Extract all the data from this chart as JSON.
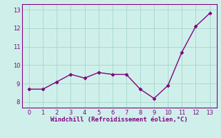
{
  "x": [
    0,
    1,
    2,
    3,
    4,
    5,
    6,
    7,
    8,
    9,
    10,
    11,
    12,
    13
  ],
  "y": [
    8.7,
    8.7,
    9.1,
    9.5,
    9.3,
    9.6,
    9.5,
    9.5,
    8.7,
    8.2,
    8.9,
    10.7,
    12.1,
    12.8
  ],
  "line_color": "#800080",
  "marker": "D",
  "marker_size": 2.5,
  "line_width": 1.0,
  "bg_color": "#cff0ea",
  "grid_color": "#aad8d0",
  "xlabel": "Windchill (Refroidissement éolien,°C)",
  "xlabel_color": "#800080",
  "tick_color": "#800080",
  "ylim": [
    7.7,
    13.3
  ],
  "xlim": [
    -0.5,
    13.5
  ],
  "yticks": [
    8,
    9,
    10,
    11,
    12,
    13
  ],
  "xticks": [
    0,
    1,
    2,
    3,
    4,
    5,
    6,
    7,
    8,
    9,
    10,
    11,
    12,
    13
  ],
  "figsize": [
    3.2,
    2.0
  ],
  "dpi": 100
}
